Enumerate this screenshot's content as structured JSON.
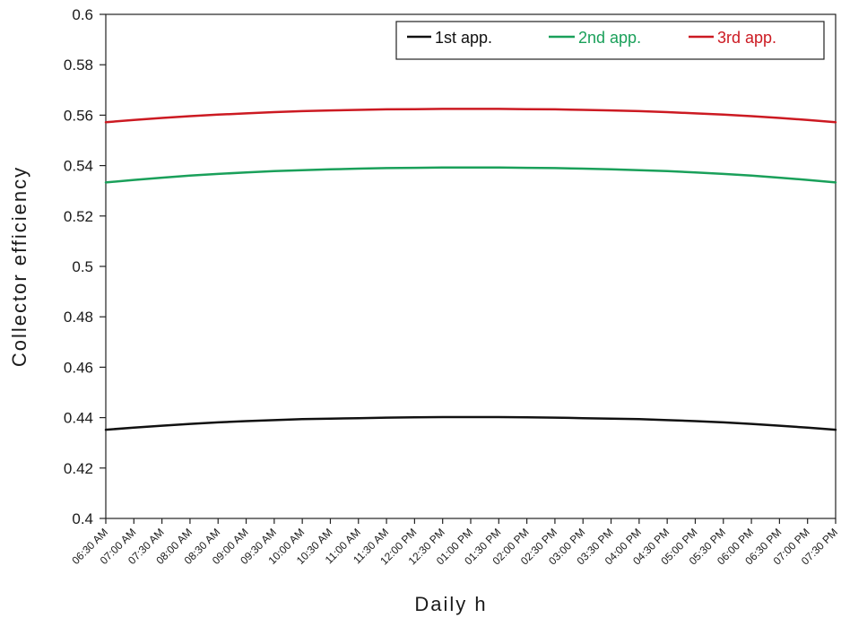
{
  "chart_data": {
    "type": "line",
    "title": "",
    "xlabel": "Daily h",
    "ylabel": "Collector efficiency",
    "ylim": [
      0.4,
      0.6
    ],
    "yticks": [
      "0.4",
      "0.42",
      "0.44",
      "0.46",
      "0.48",
      "0.5",
      "0.52",
      "0.54",
      "0.56",
      "0.58",
      "0.6"
    ],
    "categories": [
      "06:30 AM",
      "07:00 AM",
      "07:30 AM",
      "08:00 AM",
      "08:30 AM",
      "09:00 AM",
      "09:30 AM",
      "10:00 AM",
      "10:30 AM",
      "11:00 AM",
      "11:30 AM",
      "12:00 PM",
      "12:30 PM",
      "01:00 PM",
      "01:30 PM",
      "02:00 PM",
      "02:30 PM",
      "03:00 PM",
      "03:30 PM",
      "04:00 PM",
      "04:30 PM",
      "05:00 PM",
      "05:30 PM",
      "06:00 PM",
      "06:30 PM",
      "07:00 PM",
      "07:30 PM"
    ],
    "grid": false,
    "legend_position": "top-right",
    "series": [
      {
        "name": "1st app.",
        "color": "#111111",
        "values": [
          0.4352,
          0.436,
          0.4368,
          0.4375,
          0.4381,
          0.4386,
          0.439,
          0.4394,
          0.4396,
          0.4398,
          0.44,
          0.4401,
          0.4402,
          0.4402,
          0.4402,
          0.4401,
          0.44,
          0.4398,
          0.4396,
          0.4394,
          0.439,
          0.4386,
          0.4381,
          0.4375,
          0.4368,
          0.436,
          0.4352
        ]
      },
      {
        "name": "2nd app.",
        "color": "#1aa05a",
        "values": [
          0.5333,
          0.5343,
          0.5352,
          0.536,
          0.5367,
          0.5373,
          0.5378,
          0.5382,
          0.5385,
          0.5388,
          0.539,
          0.5391,
          0.5392,
          0.5392,
          0.5392,
          0.5391,
          0.539,
          0.5388,
          0.5385,
          0.5382,
          0.5378,
          0.5373,
          0.5367,
          0.536,
          0.5352,
          0.5343,
          0.5333
        ]
      },
      {
        "name": "3rd app.",
        "color": "#cc1a22",
        "values": [
          0.5572,
          0.5581,
          0.5589,
          0.5596,
          0.5602,
          0.5607,
          0.5612,
          0.5616,
          0.5619,
          0.5621,
          0.5623,
          0.5624,
          0.5625,
          0.5625,
          0.5625,
          0.5624,
          0.5623,
          0.5621,
          0.5619,
          0.5616,
          0.5612,
          0.5607,
          0.5602,
          0.5596,
          0.5589,
          0.5581,
          0.5572
        ]
      }
    ]
  }
}
